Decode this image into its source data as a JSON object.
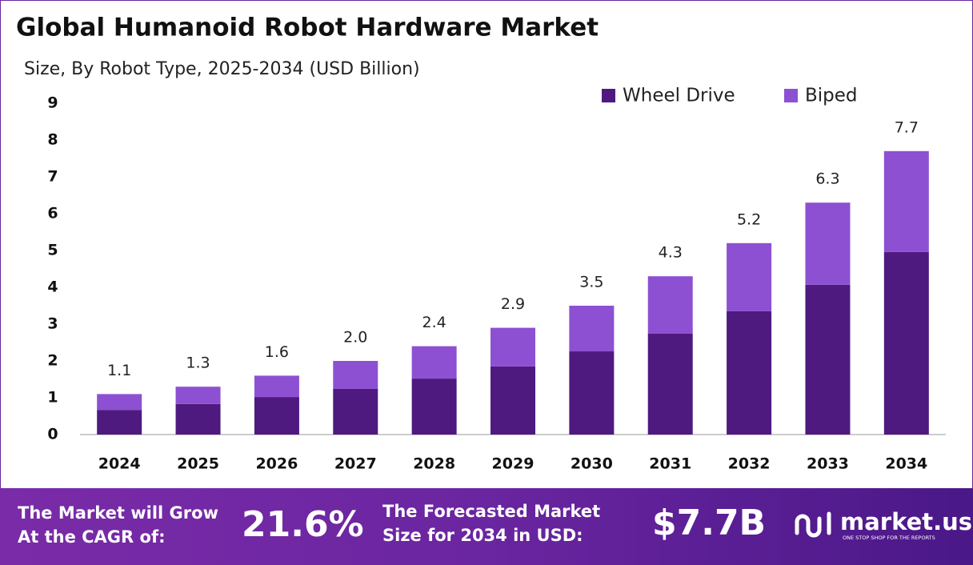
{
  "chart_data": {
    "type": "stacked_bar",
    "title": "Global Humanoid Robot Hardware Market",
    "subtitle": "Size, By Robot Type, 2025-2034 (USD Billion)",
    "categories": [
      "2024",
      "2025",
      "2026",
      "2027",
      "2028",
      "2029",
      "2030",
      "2031",
      "2032",
      "2033",
      "2034"
    ],
    "series": [
      {
        "name": "Wheel Drive",
        "color": "#4e1a7f",
        "values": [
          0.67,
          0.83,
          1.02,
          1.24,
          1.52,
          1.85,
          2.26,
          2.74,
          3.35,
          4.07,
          4.96
        ]
      },
      {
        "name": "Biped",
        "color": "#8d50d2",
        "values": [
          0.43,
          0.47,
          0.58,
          0.76,
          0.88,
          1.05,
          1.24,
          1.56,
          1.85,
          2.23,
          2.74
        ]
      }
    ],
    "totals": [
      1.1,
      1.3,
      1.6,
      2.0,
      2.4,
      2.9,
      3.5,
      4.3,
      5.2,
      6.3,
      7.7
    ],
    "total_labels": [
      "1.1",
      "1.3",
      "1.6",
      "2.0",
      "2.4",
      "2.9",
      "3.5",
      "4.3",
      "5.2",
      "6.3",
      "7.7"
    ],
    "ylim": [
      0,
      9
    ],
    "yticks": [
      0,
      1,
      2,
      3,
      4,
      5,
      6,
      7,
      8,
      9
    ],
    "grid": false,
    "legend": "top-right"
  },
  "footer": {
    "cagr_text": [
      "The Market will Grow",
      "At the CAGR of:"
    ],
    "cagr_value": "21.6%",
    "forecast_text": [
      "The Forecasted Market",
      "Size for 2034 in USD:"
    ],
    "forecast_value": "$7.7B",
    "brand": "market.us",
    "tagline": "ONE STOP SHOP FOR THE REPORTS"
  }
}
